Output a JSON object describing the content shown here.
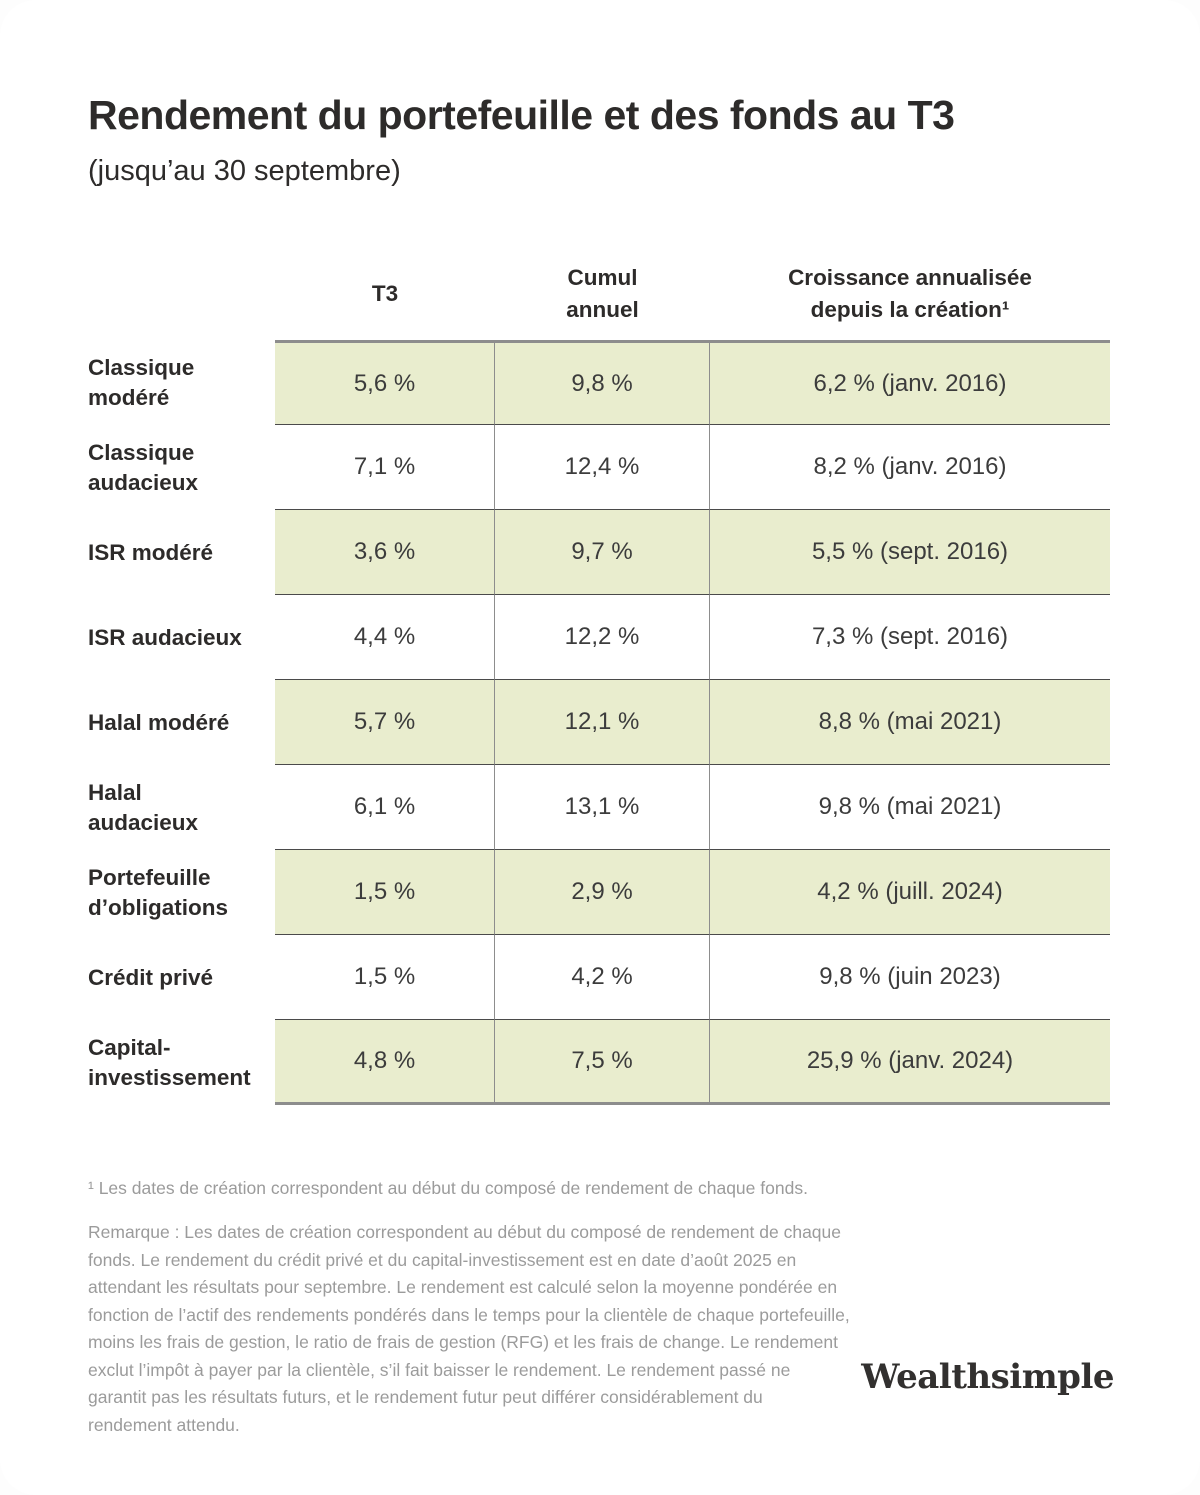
{
  "page": {
    "title": "Rendement du portefeuille et des fonds au T3",
    "subtitle": "(jusqu’au 30 septembre)",
    "footnote": "¹ Les dates de création correspondent au début du composé de rendement de chaque fonds.",
    "note": "Remarque : Les dates de création correspondent au début du composé de rendement de chaque fonds. Le rendement du crédit privé et du capital-investissement est en date d’août 2025 en attendant les résultats pour septembre. Le rendement est calculé selon la moyenne pondérée en fonction de l’actif des rendements pondérés dans le temps pour la clientèle de chaque portefeuille, moins les frais de gestion, le ratio de frais de gestion (RFG) et les frais de change. Le rendement exclut l’impôt à payer par la clientèle, s’il fait baisser le rendement. Le rendement passé ne garantit pas les résultats futurs, et le rendement futur peut différer considérablement du rendement attendu."
  },
  "table": {
    "header": {
      "q3": "T3",
      "ytd": "Cumul annuel",
      "since": "Croissance annualisée depuis la création¹"
    },
    "rows": [
      {
        "label": "Classique modéré",
        "q3": "5,6 %",
        "ytd": "9,8 %",
        "since": "6,2 % (janv. 2016)",
        "highlight": true
      },
      {
        "label": "Classique audacieux",
        "q3": "7,1 %",
        "ytd": "12,4 %",
        "since": "8,2 % (janv. 2016)",
        "highlight": false
      },
      {
        "label": "ISR modéré",
        "q3": "3,6 %",
        "ytd": "9,7 %",
        "since": "5,5 % (sept. 2016)",
        "highlight": true
      },
      {
        "label": "ISR audacieux",
        "q3": "4,4 %",
        "ytd": "12,2 %",
        "since": "7,3 % (sept. 2016)",
        "highlight": false
      },
      {
        "label": "Halal modéré",
        "q3": "5,7 %",
        "ytd": "12,1 %",
        "since": "8,8 % (mai 2021)",
        "highlight": true
      },
      {
        "label": "Halal audacieux",
        "q3": "6,1 %",
        "ytd": "13,1 %",
        "since": "9,8 % (mai 2021)",
        "highlight": false
      },
      {
        "label": "Portefeuille d’obligations",
        "q3": "1,5 %",
        "ytd": "2,9 %",
        "since": "4,2 % (juill. 2024)",
        "highlight": true
      },
      {
        "label": "Crédit privé",
        "q3": "1,5 %",
        "ytd": "4,2 %",
        "since": "9,8 % (juin 2023)",
        "highlight": false
      },
      {
        "label": "Capital-investissement",
        "q3": "4,8 %",
        "ytd": "7,5 %",
        "since": "25,9 % (janv. 2024)",
        "highlight": true
      }
    ]
  },
  "chart_data": {
    "type": "table",
    "title": "Rendement du portefeuille et des fonds au T3 (jusqu’au 30 septembre)",
    "columns": [
      "T3",
      "Cumul annuel",
      "Croissance annualisée depuis la création"
    ],
    "categories": [
      "Classique modéré",
      "Classique audacieux",
      "ISR modéré",
      "ISR audacieux",
      "Halal modéré",
      "Halal audacieux",
      "Portefeuille d’obligations",
      "Crédit privé",
      "Capital-investissement"
    ],
    "series": [
      {
        "name": "T3 (%)",
        "values": [
          5.6,
          7.1,
          3.6,
          4.4,
          5.7,
          6.1,
          1.5,
          1.5,
          4.8
        ]
      },
      {
        "name": "Cumul annuel (%)",
        "values": [
          9.8,
          12.4,
          9.7,
          12.2,
          12.1,
          13.1,
          2.9,
          4.2,
          7.5
        ]
      },
      {
        "name": "Croissance annualisée depuis la création (%)",
        "values": [
          6.2,
          8.2,
          5.5,
          7.3,
          8.8,
          9.8,
          4.2,
          9.8,
          25.9
        ]
      }
    ],
    "inception_dates": [
      "janv. 2016",
      "janv. 2016",
      "sept. 2016",
      "sept. 2016",
      "mai 2021",
      "mai 2021",
      "juill. 2024",
      "juin 2023",
      "janv. 2024"
    ]
  },
  "brand": {
    "wordmark": "Wealthsimple"
  },
  "colors": {
    "highlight_green": "#e9edce",
    "border_gray": "#8d8d8d",
    "row_separator": "#4a4a4a",
    "text_dark": "#2d2b2a",
    "note_gray": "#9b9b9b",
    "background": "#ffffff"
  }
}
